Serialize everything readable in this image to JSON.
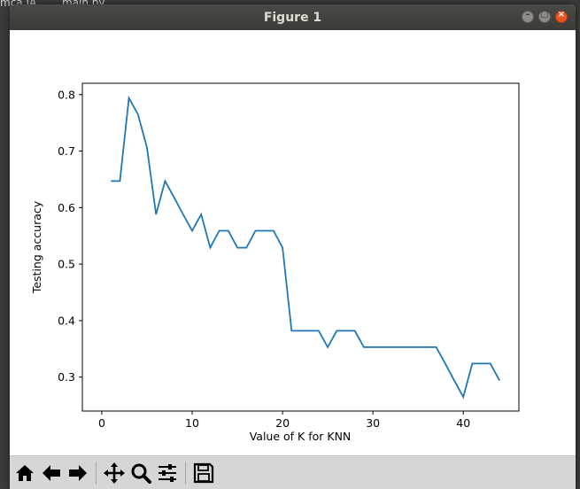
{
  "window": {
    "title": "Figure 1"
  },
  "background": {
    "tab_text": "main.py"
  },
  "toolbar": {
    "tools": [
      {
        "icon": "home-icon"
      },
      {
        "icon": "back-arrow-icon"
      },
      {
        "icon": "forward-arrow-icon"
      },
      {
        "icon": "pan-icon"
      },
      {
        "icon": "zoom-icon"
      },
      {
        "icon": "configure-subplots-icon"
      },
      {
        "icon": "save-icon"
      }
    ]
  },
  "chart_data": {
    "type": "line",
    "title": "",
    "xlabel": "Value of K for KNN",
    "ylabel": "Testing accuracy",
    "xlim": [
      -2.15,
      46.15
    ],
    "ylim": [
      0.24,
      0.82
    ],
    "xticks": [
      0,
      10,
      20,
      30,
      40
    ],
    "yticks": [
      0.3,
      0.4,
      0.5,
      0.6,
      0.7,
      0.8
    ],
    "xtick_labels": [
      "0",
      "10",
      "20",
      "30",
      "40"
    ],
    "ytick_labels": [
      "0.3",
      "0.4",
      "0.5",
      "0.6",
      "0.7",
      "0.8"
    ],
    "grid": false,
    "line_color": "#1f77b4",
    "series": [
      {
        "x": [
          1,
          2,
          3,
          4,
          5,
          6,
          7,
          8,
          9,
          10,
          11,
          12,
          13,
          14,
          15,
          16,
          17,
          18,
          19,
          20,
          21,
          22,
          23,
          24,
          25,
          26,
          27,
          28,
          29,
          30,
          31,
          32,
          33,
          34,
          35,
          36,
          37,
          38,
          39,
          40,
          41,
          42,
          43,
          44
        ],
        "values": [
          0.647,
          0.647,
          0.794,
          0.765,
          0.706,
          0.588,
          0.647,
          0.618,
          0.588,
          0.559,
          0.588,
          0.529,
          0.559,
          0.559,
          0.529,
          0.529,
          0.559,
          0.559,
          0.559,
          0.529,
          0.382,
          0.382,
          0.382,
          0.382,
          0.353,
          0.382,
          0.382,
          0.382,
          0.353,
          0.353,
          0.353,
          0.353,
          0.353,
          0.353,
          0.353,
          0.353,
          0.353,
          0.324,
          0.294,
          0.265,
          0.324,
          0.324,
          0.324,
          0.294
        ]
      }
    ]
  }
}
